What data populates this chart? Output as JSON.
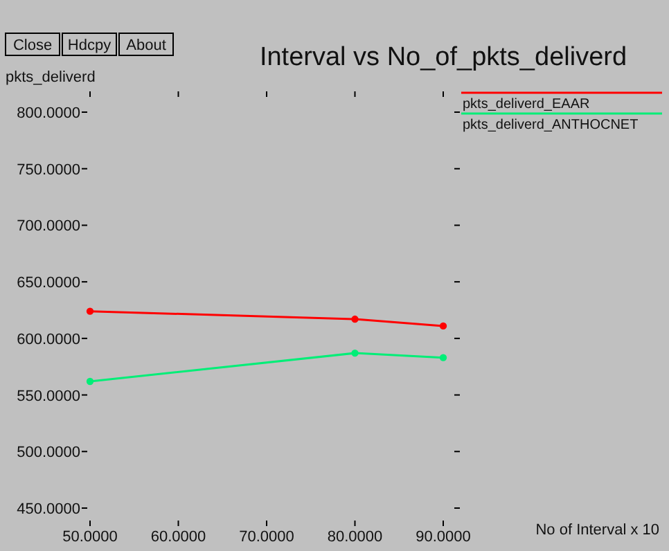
{
  "chart_data": {
    "type": "line",
    "title": "Interval vs No_of_pkts_deliverd",
    "ylabel": "pkts_deliverd",
    "xlabel": "No of Interval x 10",
    "annotations": [
      "Close",
      "Hdcpy",
      "About"
    ],
    "x": [
      50,
      80,
      90
    ],
    "series": [
      {
        "name": "pkts_deliverd_EAAR",
        "color": "#ff0000",
        "values": [
          624,
          617,
          611
        ]
      },
      {
        "name": "pkts_deliverd_ANTHOCNET",
        "color": "#00ee77",
        "values": [
          562,
          587,
          583
        ]
      }
    ],
    "xlim": [
      50,
      90
    ],
    "ylim": [
      450,
      800
    ],
    "xticks": [
      {
        "value": 50,
        "label": "50.0000"
      },
      {
        "value": 60,
        "label": "60.0000"
      },
      {
        "value": 70,
        "label": "70.0000"
      },
      {
        "value": 80,
        "label": "80.0000"
      },
      {
        "value": 90,
        "label": "90.0000"
      }
    ],
    "yticks": [
      {
        "value": 450,
        "label": "450.0000"
      },
      {
        "value": 500,
        "label": "500.0000"
      },
      {
        "value": 550,
        "label": "550.0000"
      },
      {
        "value": 600,
        "label": "600.0000"
      },
      {
        "value": 650,
        "label": "650.0000"
      },
      {
        "value": 700,
        "label": "700.0000"
      },
      {
        "value": 750,
        "label": "750.0000"
      },
      {
        "value": 800,
        "label": "800.0000"
      }
    ],
    "grid": false,
    "legend": "top right",
    "marker": "circle",
    "line_style": "solid"
  }
}
